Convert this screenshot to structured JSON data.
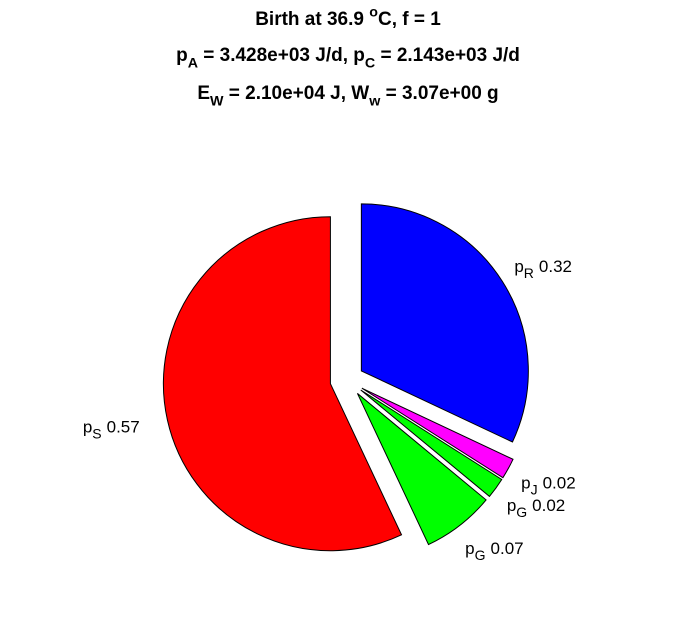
{
  "chart_data": {
    "type": "pie",
    "title": [
      [
        {
          "t": "Birth at 36.9 "
        },
        {
          "sup": "o"
        },
        {
          "t": "C, f = 1"
        }
      ],
      [
        {
          "t": "p"
        },
        {
          "sub": "A"
        },
        {
          "t": " = 3.428e+03 J/d, p"
        },
        {
          "sub": "C"
        },
        {
          "t": " = 2.143e+03 J/d"
        }
      ],
      [
        {
          "t": "E"
        },
        {
          "sub": "W"
        },
        {
          "t": " = 2.10e+04 J, W"
        },
        {
          "sub": "w"
        },
        {
          "t": " = 3.07e+00 g"
        }
      ]
    ],
    "categories": [
      {
        "base": "p",
        "sub": "R"
      },
      {
        "base": "p",
        "sub": "J"
      },
      {
        "base": "p",
        "sub": "G"
      },
      {
        "base": "p",
        "sub": "G"
      },
      {
        "base": "p",
        "sub": "S"
      }
    ],
    "values": [
      0.32,
      0.02,
      0.02,
      0.07,
      0.57
    ],
    "colors": [
      "#0000ff",
      "#ff00ff",
      "#00ff00",
      "#00ff00",
      "#ff0000"
    ],
    "explode": true
  }
}
